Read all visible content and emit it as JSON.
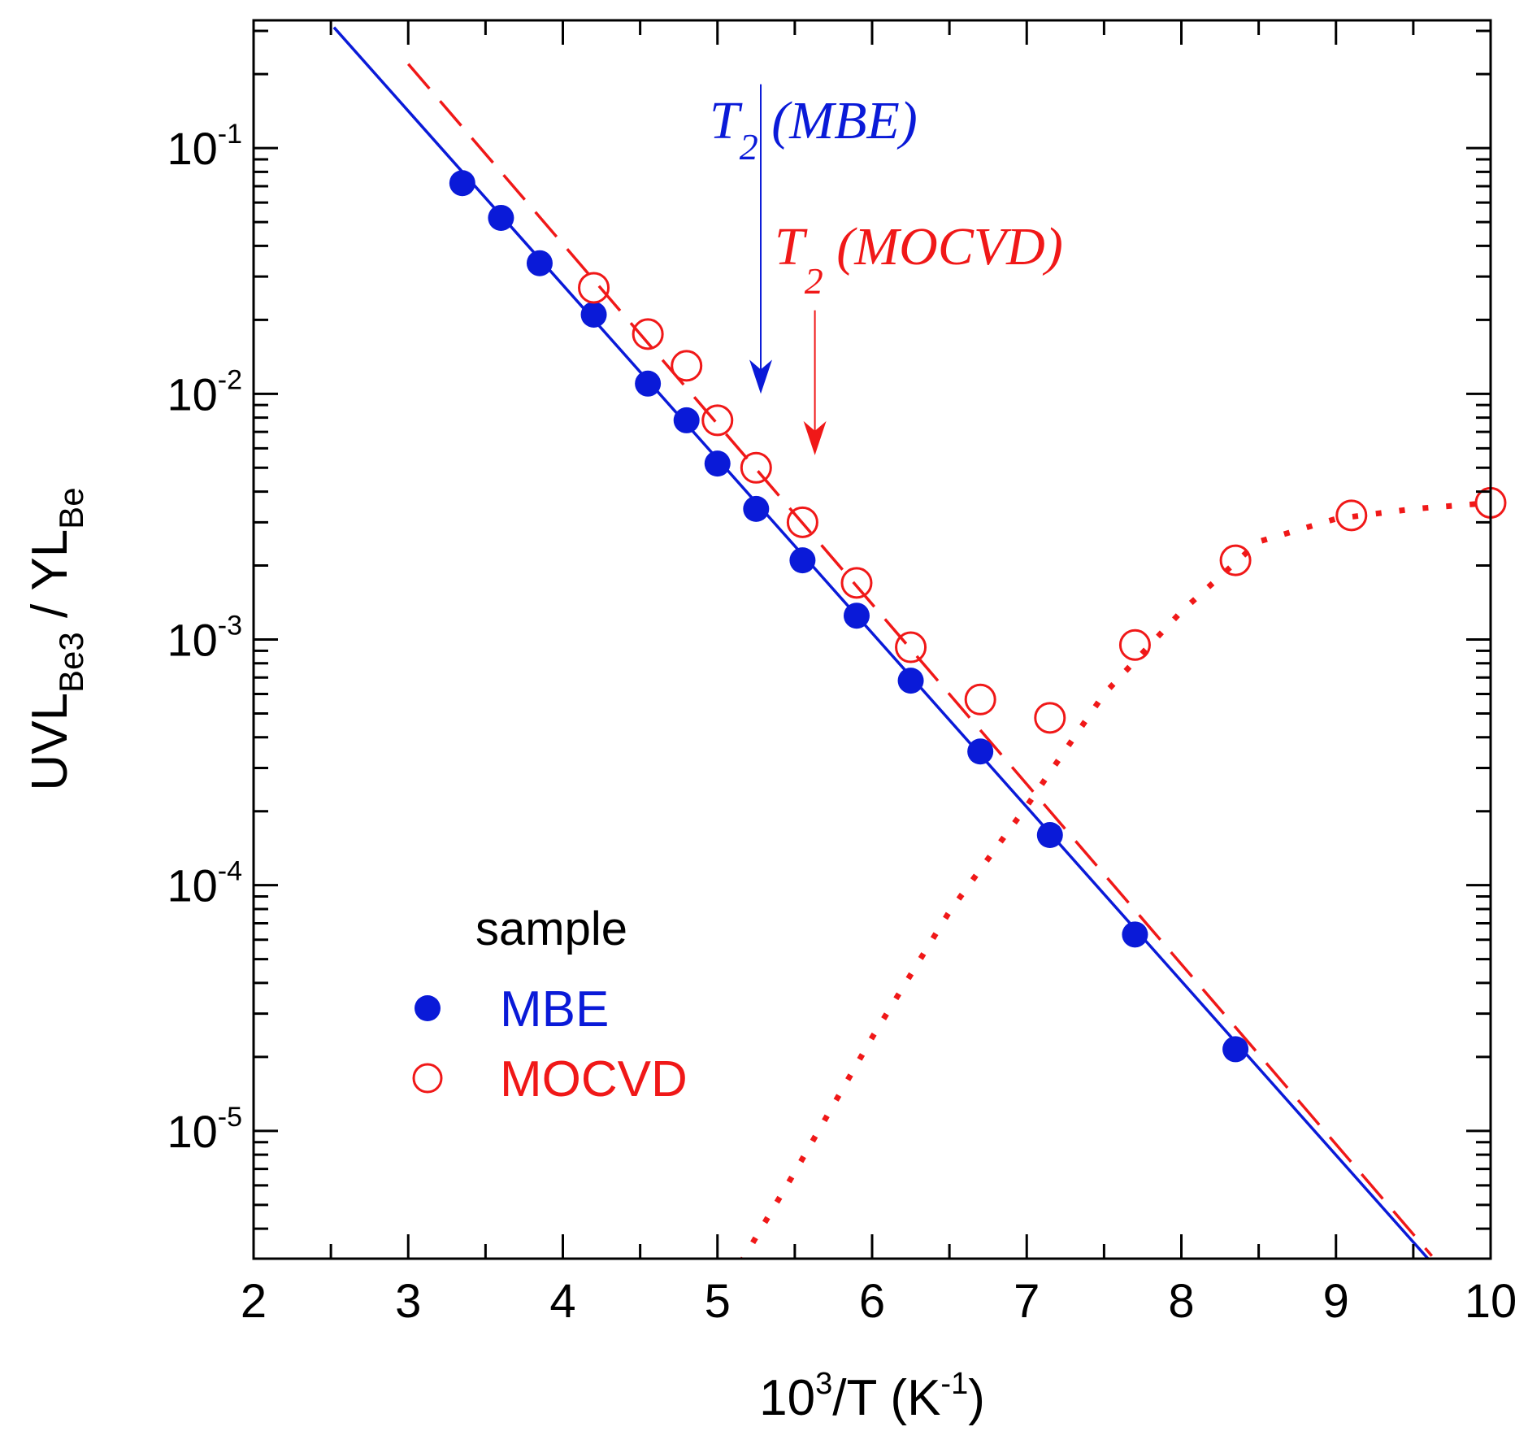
{
  "colors": {
    "mbe": "#0a1ad8",
    "mocvd": "#f01818",
    "axis": "#000000"
  },
  "chart_data": {
    "type": "scatter",
    "xlabel": {
      "base": "10",
      "sup": "3",
      "mid": "/T (K",
      "sup2": "-1",
      "end": ")"
    },
    "ylabel": {
      "a": "UVL",
      "a_sub": "Be3",
      "b": " / YL",
      "b_sub": "Be"
    },
    "xlim": [
      2,
      10
    ],
    "ylim_log10": [
      -5.52,
      -0.48
    ],
    "x_ticks": [
      2,
      3,
      4,
      5,
      6,
      7,
      8,
      9,
      10
    ],
    "y_ticks": [
      {
        "base": "10",
        "exp": "-1",
        "value": -1
      },
      {
        "base": "10",
        "exp": "-2",
        "value": -2
      },
      {
        "base": "10",
        "exp": "-3",
        "value": -3
      },
      {
        "base": "10",
        "exp": "-4",
        "value": -4
      },
      {
        "base": "10",
        "exp": "-5",
        "value": -5
      }
    ],
    "series": [
      {
        "name": "MBE",
        "marker": "filled-circle",
        "x": [
          3.35,
          3.6,
          3.85,
          4.2,
          4.55,
          4.8,
          5.0,
          5.25,
          5.55,
          5.9,
          6.25,
          6.7,
          7.15,
          7.7,
          8.35
        ],
        "y": [
          0.072,
          0.052,
          0.034,
          0.021,
          0.011,
          0.0078,
          0.0052,
          0.0034,
          0.0021,
          0.00125,
          0.00068,
          0.00035,
          0.00016,
          6.3e-05,
          2.15e-05
        ]
      },
      {
        "name": "MOCVD",
        "marker": "open-circle",
        "x": [
          4.2,
          4.55,
          4.8,
          5.0,
          5.25,
          5.55,
          5.9,
          6.25,
          6.7,
          7.15,
          7.7,
          8.35,
          9.1,
          10.0
        ],
        "y": [
          0.027,
          0.0175,
          0.013,
          0.0078,
          0.005,
          0.003,
          0.0017,
          0.00093,
          0.00057,
          0.00048,
          0.00095,
          0.0021,
          0.0032,
          0.0036
        ]
      }
    ],
    "fits": [
      {
        "name": "MBE fit",
        "style": "solid",
        "x": [
          2.52,
          9.62
        ],
        "y": [
          0.31,
          2.9e-06
        ]
      },
      {
        "name": "MOCVD fit",
        "style": "dashed",
        "x": [
          3.0,
          9.62
        ],
        "y": [
          0.22,
          3.1e-06
        ]
      },
      {
        "name": "MOCVD model",
        "style": "dotted",
        "x": [
          5.15,
          5.5,
          6.0,
          6.5,
          7.0,
          7.5,
          8.0,
          8.5,
          9.0,
          9.5,
          10.0
        ],
        "y": [
          2.9e-06,
          6.8e-06,
          2.4e-05,
          7.8e-05,
          0.00021,
          0.0006,
          0.0013,
          0.0025,
          0.0031,
          0.0034,
          0.0036
        ]
      }
    ],
    "annotations": [
      {
        "id": "t2-mbe",
        "t": "T",
        "sub": "2",
        "rest": " (MBE)",
        "arrow_x": 5.28,
        "arrow_y_top": -0.74,
        "arrow_y_bottom": -2.0
      },
      {
        "id": "t2-mocvd",
        "t": "T",
        "sub": "2",
        "rest": " (MOCVD)",
        "arrow_x": 5.63,
        "arrow_y_top": -1.66,
        "arrow_y_bottom": -2.25
      }
    ],
    "legend": {
      "title": "sample",
      "position": "bottom-left",
      "entries": [
        {
          "label": "MBE",
          "marker": "filled-circle"
        },
        {
          "label": "MOCVD",
          "marker": "open-circle"
        }
      ]
    }
  }
}
